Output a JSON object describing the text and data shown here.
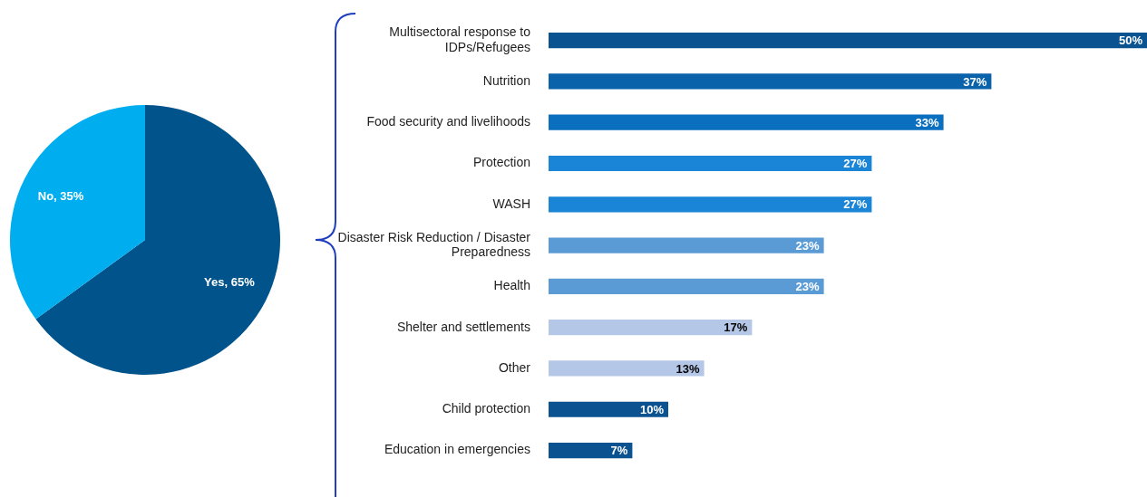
{
  "chart_data": [
    {
      "type": "pie",
      "categories": [
        "Yes",
        "No"
      ],
      "values": [
        65,
        35
      ],
      "colors": [
        "#00538b",
        "#00aeef"
      ],
      "value_labels": [
        "65%",
        "35%"
      ]
    },
    {
      "type": "bar",
      "orientation": "horizontal",
      "categories": [
        "Multisectoral response to IDPs/Refugees",
        "Nutrition",
        "Food security and livelihoods",
        "Protection",
        "WASH",
        "Disaster Risk Reduction / Disaster Preparedness",
        "Health",
        "Shelter and settlements",
        "Other",
        "Child protection",
        "Education in emergencies"
      ],
      "values": [
        50,
        37,
        33,
        27,
        27,
        23,
        23,
        17,
        13,
        10,
        7
      ],
      "colors": [
        "#0b5290",
        "#0a62ab",
        "#0b6fbf",
        "#1a84d6",
        "#1a84d6",
        "#5b9bd5",
        "#5b9bd5",
        "#b4c7e7",
        "#b4c7e7",
        "#0b5290",
        "#0b5290"
      ],
      "value_labels": [
        "50%",
        "37%",
        "33%",
        "27%",
        "27%",
        "23%",
        "23%",
        "17%",
        "13%",
        "10%",
        "7%"
      ],
      "xlim": [
        0,
        50
      ],
      "tick_labels": "y"
    }
  ]
}
